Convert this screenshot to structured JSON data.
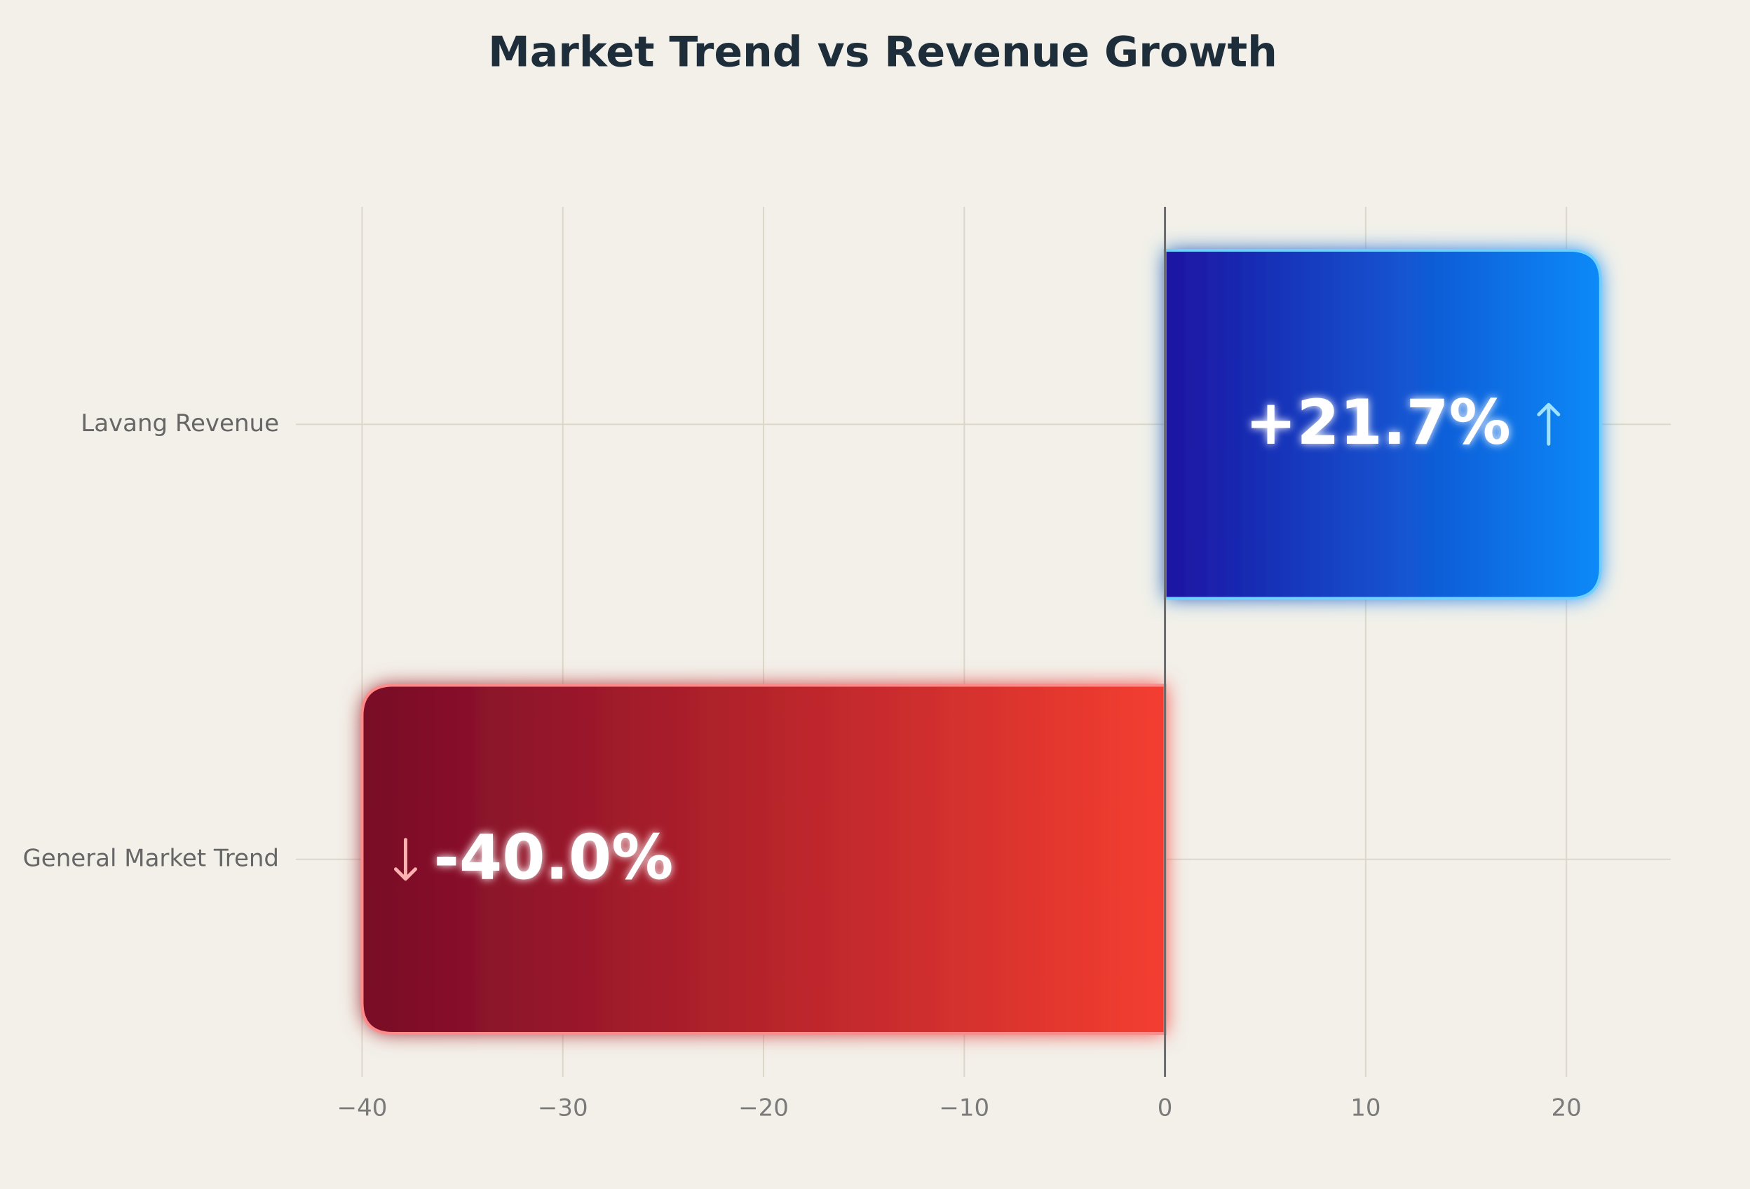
{
  "chart_data": {
    "type": "bar",
    "orientation": "horizontal",
    "title": "Market Trend vs Revenue Growth",
    "categories": [
      "Lavang Revenue",
      "General Market Trend"
    ],
    "values": [
      21.7,
      -40.0
    ],
    "value_labels": [
      "+21.7%",
      "-40.0%"
    ],
    "colors": [
      [
        "#1c14a2",
        "#0a8af8"
      ],
      [
        "#780a28",
        "#f43e30"
      ]
    ],
    "xlim": [
      -43.3,
      25.2
    ],
    "xticks": [
      {
        "value": -40,
        "label": "−40"
      },
      {
        "value": -30,
        "label": "−30"
      },
      {
        "value": -20,
        "label": "−20"
      },
      {
        "value": -10,
        "label": "−10"
      },
      0,
      10,
      20
    ],
    "grid": true
  }
}
